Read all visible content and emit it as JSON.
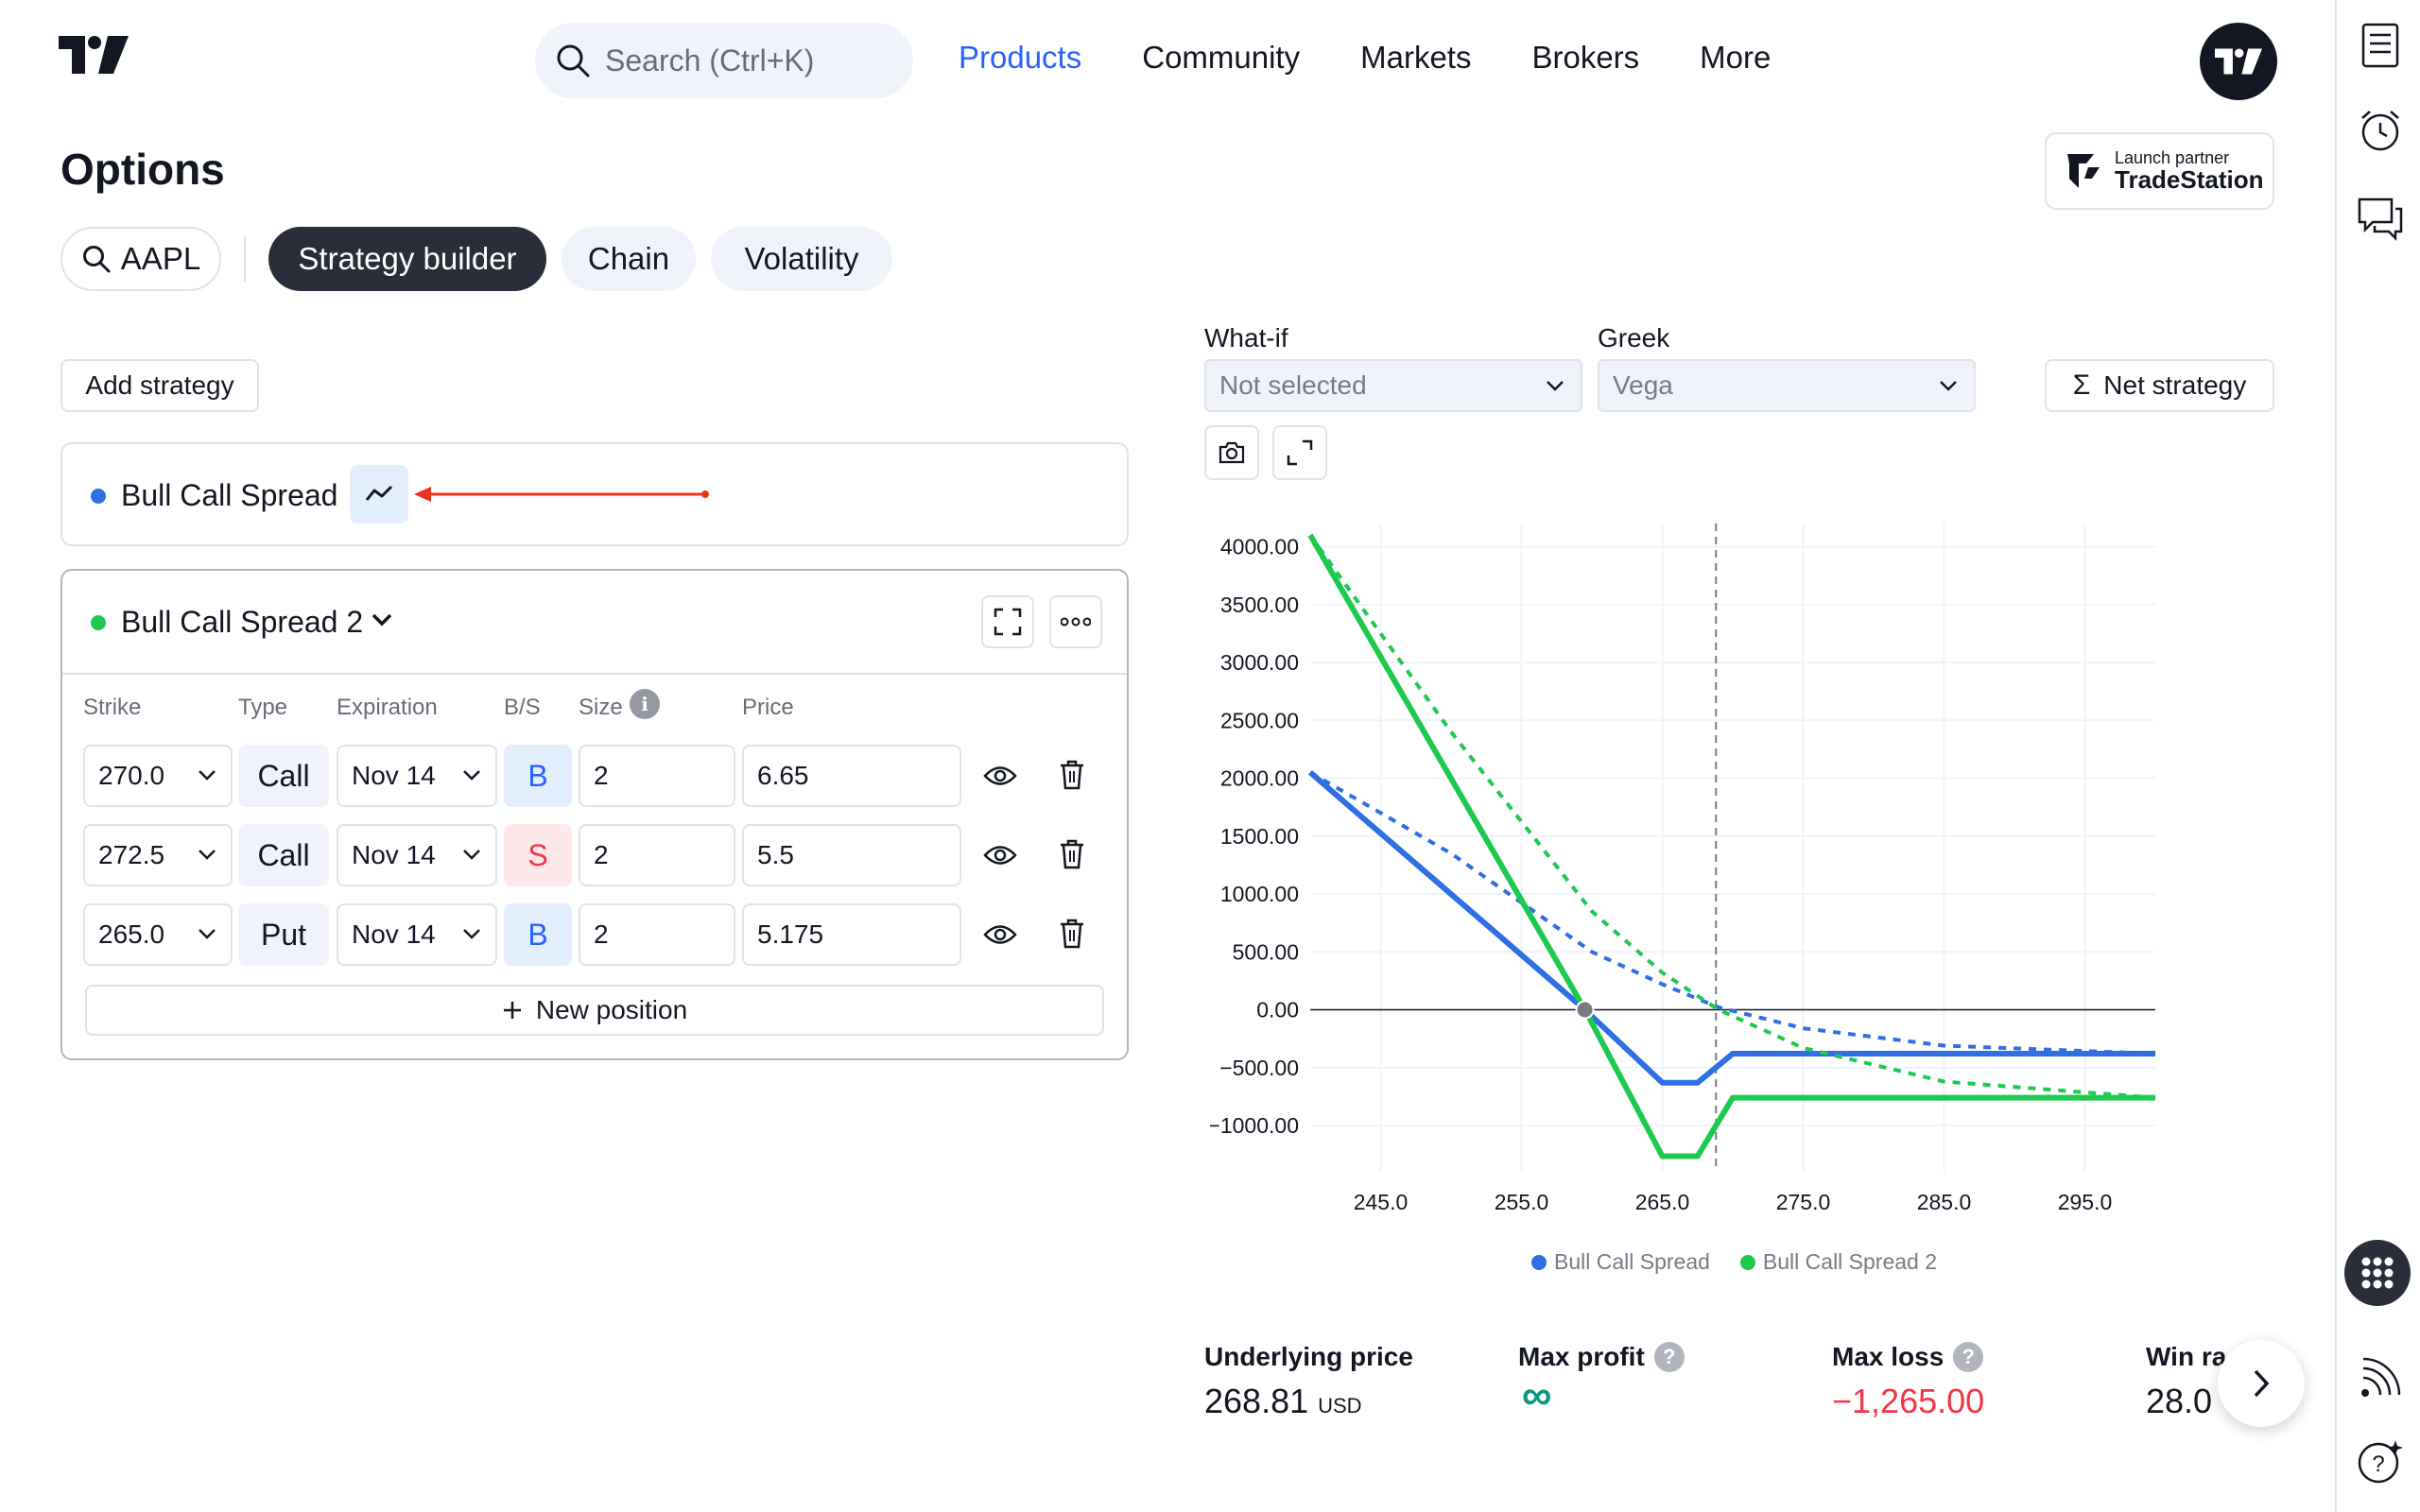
{
  "header": {
    "search_placeholder": "Search (Ctrl+K)",
    "nav": [
      "Products",
      "Community",
      "Markets",
      "Brokers",
      "More"
    ]
  },
  "page": {
    "title": "Options",
    "partner_small": "Launch partner",
    "partner_name": "TradeStation"
  },
  "tabs": {
    "symbol": "AAPL",
    "strategy_builder": "Strategy builder",
    "chain": "Chain",
    "volatility": "Volatility"
  },
  "strategies": {
    "add_label": "Add strategy",
    "first": {
      "name": "Bull Call Spread",
      "color": "#2f6fe4"
    },
    "second": {
      "name": "Bull Call Spread 2",
      "color": "#1ec94f"
    },
    "columns": [
      "Strike",
      "Type",
      "Expiration",
      "B/S",
      "Size",
      "Price"
    ],
    "positions": [
      {
        "strike": "270.0",
        "type": "Call",
        "expiration": "Nov 14",
        "bs": "B",
        "size": "2",
        "price": "6.65"
      },
      {
        "strike": "272.5",
        "type": "Call",
        "expiration": "Nov 14",
        "bs": "S",
        "size": "2",
        "price": "5.5"
      },
      {
        "strike": "265.0",
        "type": "Put",
        "expiration": "Nov 14",
        "bs": "B",
        "size": "2",
        "price": "5.175"
      }
    ],
    "new_position": "New position"
  },
  "controls": {
    "whatif_label": "What-if",
    "whatif_value": "Not selected",
    "greek_label": "Greek",
    "greek_value": "Vega",
    "net_strategy": "Net strategy"
  },
  "chart_data": {
    "type": "line",
    "xlim": [
      240,
      300
    ],
    "ylim": [
      -1400,
      4200
    ],
    "x_ticks": [
      245.0,
      255.0,
      265.0,
      275.0,
      285.0,
      295.0
    ],
    "x_tick_labels": [
      "245.0",
      "255.0",
      "265.0",
      "275.0",
      "285.0",
      "295.0"
    ],
    "y_ticks": [
      4000,
      3500,
      3000,
      2500,
      2000,
      1500,
      1000,
      500,
      0,
      -500,
      -1000
    ],
    "y_tick_labels": [
      "4000.00",
      "3500.00",
      "3000.00",
      "2500.00",
      "2000.00",
      "1500.00",
      "1000.00",
      "500.00",
      "0.00",
      "−500.00",
      "−1000.00"
    ],
    "current_price_x": 268.81,
    "breakeven_x": 259.5,
    "series": [
      {
        "name": "Bull Call Spread",
        "color": "#2f6fe4",
        "solid": [
          [
            240,
            2050
          ],
          [
            259.5,
            0
          ],
          [
            265,
            -630
          ],
          [
            267.5,
            -630
          ],
          [
            270,
            -380
          ],
          [
            300,
            -380
          ]
        ],
        "dashed": [
          [
            240,
            2050
          ],
          [
            250,
            1350
          ],
          [
            260,
            500
          ],
          [
            265,
            220
          ],
          [
            269,
            20
          ],
          [
            275,
            -160
          ],
          [
            285,
            -310
          ],
          [
            300,
            -380
          ]
        ]
      },
      {
        "name": "Bull Call Spread 2",
        "color": "#1ec94f",
        "solid": [
          [
            240,
            4100
          ],
          [
            259.5,
            0
          ],
          [
            265,
            -1265
          ],
          [
            267.5,
            -1265
          ],
          [
            270,
            -760
          ],
          [
            300,
            -760
          ]
        ],
        "dashed": [
          [
            240,
            4100
          ],
          [
            250,
            2400
          ],
          [
            260,
            850
          ],
          [
            265,
            320
          ],
          [
            269,
            0
          ],
          [
            275,
            -330
          ],
          [
            285,
            -620
          ],
          [
            300,
            -760
          ]
        ]
      }
    ]
  },
  "stats": {
    "underlying_label": "Underlying price",
    "underlying_value": "268.81",
    "underlying_unit": "USD",
    "max_profit_label": "Max profit",
    "max_profit_value": "∞",
    "max_loss_label": "Max loss",
    "max_loss_value": "−1,265.00",
    "win_label": "Win ra",
    "win_value": "28.0"
  }
}
